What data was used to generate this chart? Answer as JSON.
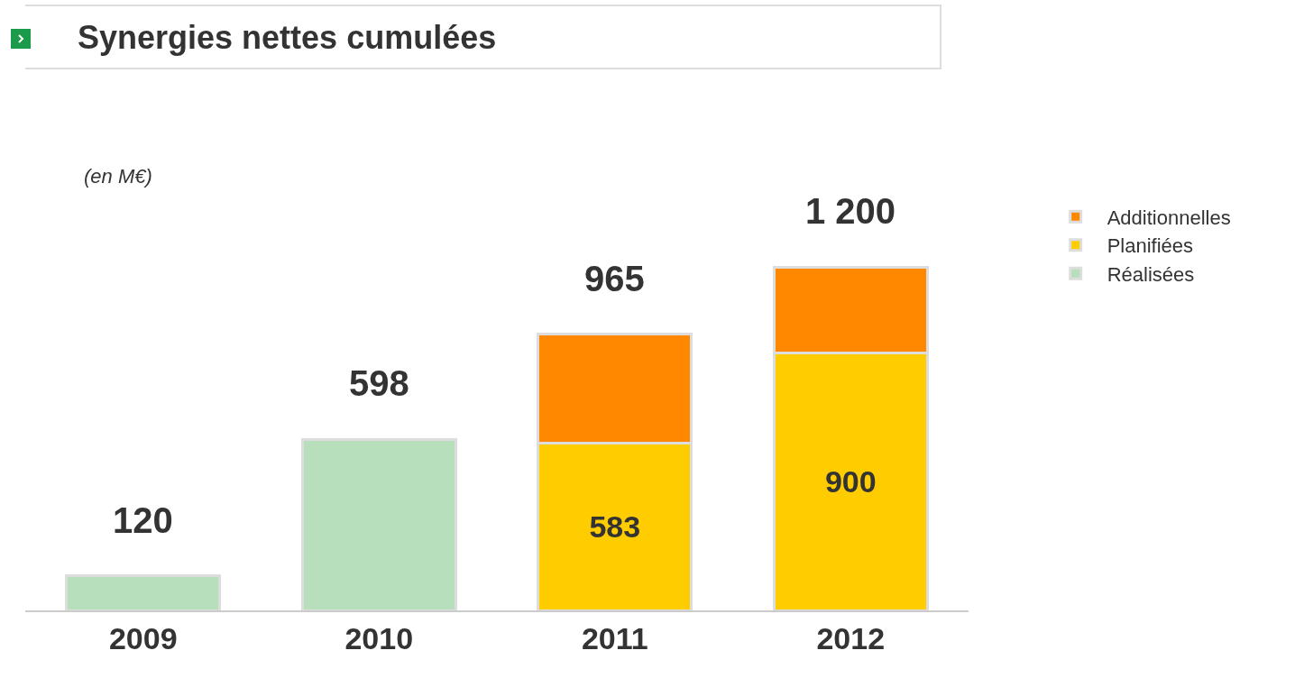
{
  "chart_data": {
    "type": "bar",
    "title": "Synergies nettes cumulées",
    "annotations": [
      "(en M€)"
    ],
    "categories": [
      "2009",
      "2010",
      "2011",
      "2012"
    ],
    "stacked": true,
    "legend": "right",
    "series": [
      {
        "name": "Réalisées",
        "color": "#b7dfbb",
        "values": [
          120,
          598,
          null,
          null
        ]
      },
      {
        "name": "Planifiées",
        "color": "#ffcc00",
        "values": [
          null,
          null,
          583,
          900
        ],
        "value_labels": [
          null,
          null,
          "583",
          "900"
        ]
      },
      {
        "name": "Additionnelles",
        "color": "#ff8800",
        "values": [
          null,
          null,
          382,
          300
        ]
      }
    ],
    "totals": [
      "120",
      "598",
      "965",
      "1 200"
    ]
  }
}
